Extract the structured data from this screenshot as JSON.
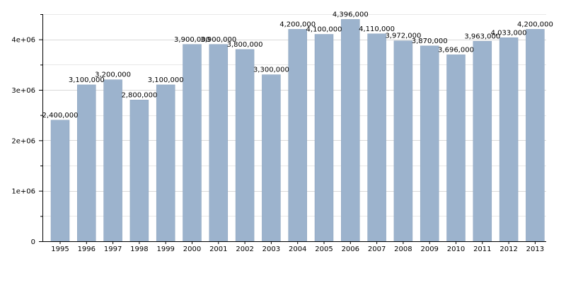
{
  "chart_data": {
    "type": "bar",
    "title": "",
    "xlabel": "",
    "ylabel": "",
    "categories": [
      "1995",
      "1996",
      "1997",
      "1998",
      "1999",
      "2000",
      "2001",
      "2002",
      "2003",
      "2004",
      "2005",
      "2006",
      "2007",
      "2008",
      "2009",
      "2010",
      "2011",
      "2012",
      "2013"
    ],
    "values": [
      2400000,
      3100000,
      3200000,
      2800000,
      3100000,
      3900000,
      3900000,
      3800000,
      3300000,
      4200000,
      4100000,
      4396000,
      4110000,
      3972000,
      3870000,
      3696000,
      3963000,
      4033000,
      4200000
    ],
    "data_labels": [
      "2,400,000",
      "3,100,000",
      "3,200,000",
      "2,800,000",
      "3,100,000",
      "3,900,000",
      "3,900,000",
      "3,800,000",
      "3,300,000",
      "4,200,000",
      "4,100,000",
      "4,396,000",
      "4,110,000",
      "3,972,000",
      "3,870,000",
      "3,696,000",
      "3,963,000",
      "4,033,000",
      "4,200,000"
    ],
    "ylim": [
      0,
      4500000
    ],
    "yticks": [
      0,
      1000000,
      2000000,
      3000000,
      4000000
    ],
    "ytick_labels": [
      "0",
      "1e+06",
      "2e+06",
      "3e+06",
      "4e+06"
    ],
    "grid": true,
    "bar_color": "#9cb3cd",
    "bar_stroke": "#8aa2bd"
  }
}
